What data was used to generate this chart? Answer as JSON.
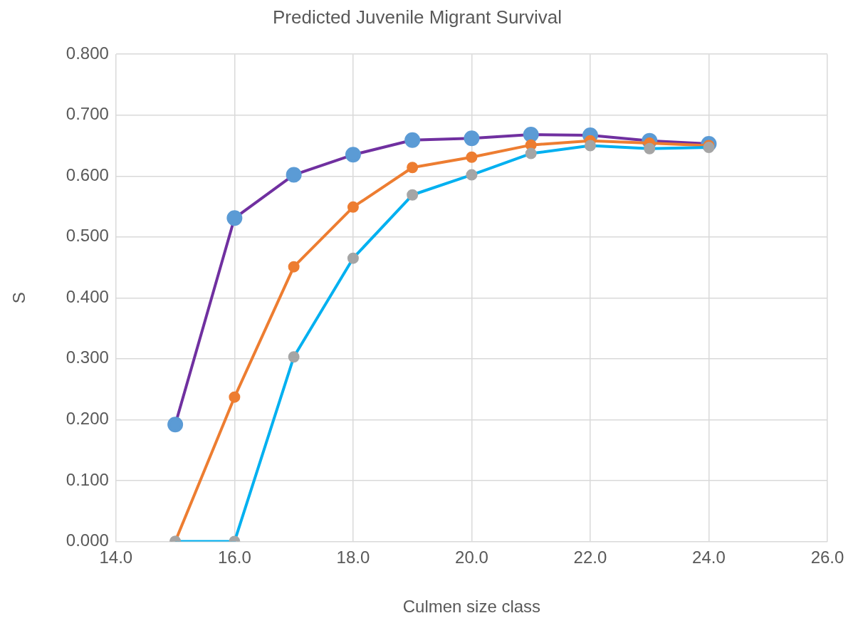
{
  "chart_data": {
    "type": "line",
    "title": "Predicted Juvenile Migrant Survival",
    "xlabel": "Culmen size class",
    "ylabel": "S",
    "x": [
      15,
      16,
      17,
      18,
      19,
      20,
      21,
      22,
      23,
      24
    ],
    "series": [
      {
        "color": "#7030a0",
        "colors": [
          "#5b9bd5",
          "#5b9bd5",
          "#5b9bd5",
          "#5b9bd5",
          "#5b9bd5",
          "#5b9bd5",
          "#5b9bd5",
          "#5b9bd5",
          "#5b9bd5",
          "#5b9bd5"
        ],
        "values": [
          0.192,
          0.531,
          0.602,
          0.635,
          0.659,
          0.662,
          0.668,
          0.667,
          0.658,
          0.653
        ]
      },
      {
        "color": "#ed7d31",
        "colors": [
          "#a5a5a5",
          "#ed7d31",
          "#ed7d31",
          "#ed7d31",
          "#ed7d31",
          "#ed7d31",
          "#ed7d31",
          "#ed7d31",
          "#ed7d31",
          "#ed7d31"
        ],
        "values": [
          0,
          0.237,
          0.451,
          0.549,
          0.614,
          0.631,
          0.651,
          0.658,
          0.654,
          0.65
        ]
      },
      {
        "color": "#00b0f0",
        "colors": [
          "#a5a5a5",
          "#a5a5a5",
          "#a5a5a5",
          "#a5a5a5",
          "#a5a5a5",
          "#a5a5a5",
          "#a5a5a5",
          "#a5a5a5",
          "#a5a5a5",
          "#a5a5a5"
        ],
        "values": [
          0,
          0,
          0.303,
          0.465,
          0.569,
          0.602,
          0.637,
          0.65,
          0.645,
          0.647
        ]
      }
    ],
    "xlim": [
      14,
      26
    ],
    "xticks": [
      {
        "value": 14,
        "label": "14.0"
      },
      {
        "value": 16,
        "label": "16.0"
      },
      {
        "value": 18,
        "label": "18.0"
      },
      {
        "value": 20,
        "label": "20.0"
      },
      {
        "value": 22,
        "label": "22.0"
      },
      {
        "value": 24,
        "label": "24.0"
      },
      {
        "value": 26,
        "label": "26.0"
      }
    ],
    "ylim": [
      0,
      0.8
    ],
    "yticks": [
      {
        "value": 0,
        "label": "0.000"
      },
      {
        "value": 0.1,
        "label": "0.100"
      },
      {
        "value": 0.2,
        "label": "0.200"
      },
      {
        "value": 0.3,
        "label": "0.300"
      },
      {
        "value": 0.4,
        "label": "0.400"
      },
      {
        "value": 0.5,
        "label": "0.500"
      },
      {
        "value": 0.6,
        "label": "0.600"
      },
      {
        "value": 0.7,
        "label": "0.700"
      },
      {
        "value": 0.8,
        "label": "0.800"
      }
    ],
    "grid": true,
    "legend": false,
    "marker": "circle",
    "line_style": "solid"
  }
}
